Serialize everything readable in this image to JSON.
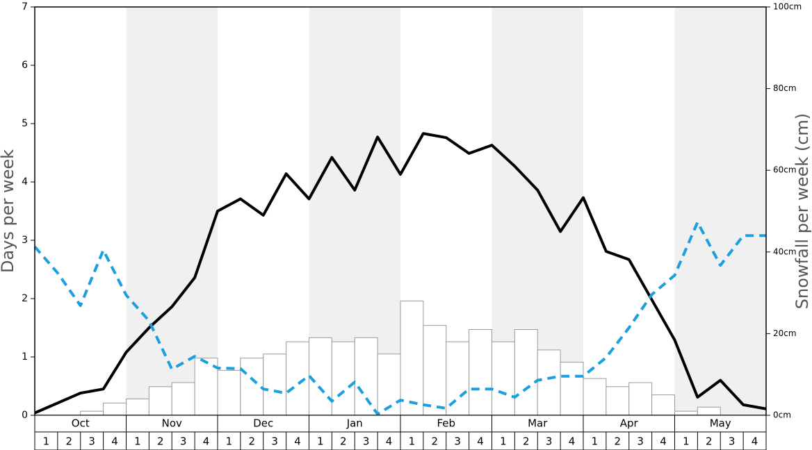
{
  "chart_data": {
    "type": "bar",
    "ylabel": "Days per week",
    "y2label": "Snowfall per week (cm)",
    "months": [
      "Oct",
      "Nov",
      "Dec",
      "Jan",
      "Feb",
      "Mar",
      "Apr",
      "May"
    ],
    "categories": [
      "1",
      "2",
      "3",
      "4",
      "1",
      "2",
      "3",
      "4",
      "1",
      "2",
      "3",
      "4",
      "1",
      "2",
      "3",
      "4",
      "1",
      "2",
      "3",
      "4",
      "1",
      "2",
      "3",
      "4",
      "1",
      "2",
      "3",
      "4",
      "1",
      "2",
      "3",
      "4"
    ],
    "ylim": [
      0,
      7
    ],
    "yticks": [
      0,
      1,
      2,
      3,
      4,
      5,
      6,
      7
    ],
    "y2lim": [
      0,
      100
    ],
    "y2ticks": [
      {
        "value": 0,
        "label": "0cm"
      },
      {
        "value": 20,
        "label": "20cm"
      },
      {
        "value": 40,
        "label": "40cm"
      },
      {
        "value": 60,
        "label": "60cm"
      },
      {
        "value": 80,
        "label": "80cm"
      },
      {
        "value": 100,
        "label": "100cm"
      }
    ],
    "bars": {
      "axis": "y2",
      "color": "#ffffff",
      "stroke": "#999999",
      "values": [
        0,
        0,
        1,
        3,
        4,
        7,
        8,
        14,
        11,
        14,
        15,
        18,
        19,
        18,
        19,
        15,
        28,
        22,
        18,
        21,
        18,
        21,
        16,
        13,
        9,
        7,
        8,
        5,
        1,
        2,
        0,
        0
      ]
    },
    "lines": {
      "type": "line",
      "xlim": [
        0,
        32
      ],
      "x": [
        0,
        1,
        2,
        3,
        4,
        5,
        6,
        7,
        8,
        9,
        10,
        11,
        12,
        13,
        14,
        15,
        16,
        17,
        18,
        19,
        20,
        21,
        22,
        23,
        24,
        25,
        26,
        27,
        28,
        29,
        30,
        31,
        32
      ],
      "series": [
        {
          "color": "#000000",
          "dash": false,
          "values": [
            0.04,
            0.21,
            0.38,
            0.45,
            1.08,
            1.5,
            1.86,
            2.36,
            3.5,
            3.71,
            3.43,
            4.14,
            3.71,
            4.42,
            3.86,
            4.77,
            4.13,
            4.83,
            4.76,
            4.49,
            4.63,
            4.27,
            3.86,
            3.15,
            3.73,
            2.81,
            2.67,
            1.98,
            1.29,
            0.31,
            0.6,
            0.18,
            0.11
          ]
        },
        {
          "color": "#1a9fe0",
          "dash": true,
          "values": [
            2.89,
            2.44,
            1.88,
            2.83,
            2.06,
            1.62,
            0.79,
            1.01,
            0.81,
            0.8,
            0.45,
            0.38,
            0.68,
            0.24,
            0.57,
            0.02,
            0.26,
            0.18,
            0.12,
            0.45,
            0.45,
            0.31,
            0.6,
            0.67,
            0.67,
            0.99,
            1.5,
            2.07,
            2.4,
            3.31,
            2.57,
            3.08,
            3.08
          ]
        }
      ]
    }
  }
}
